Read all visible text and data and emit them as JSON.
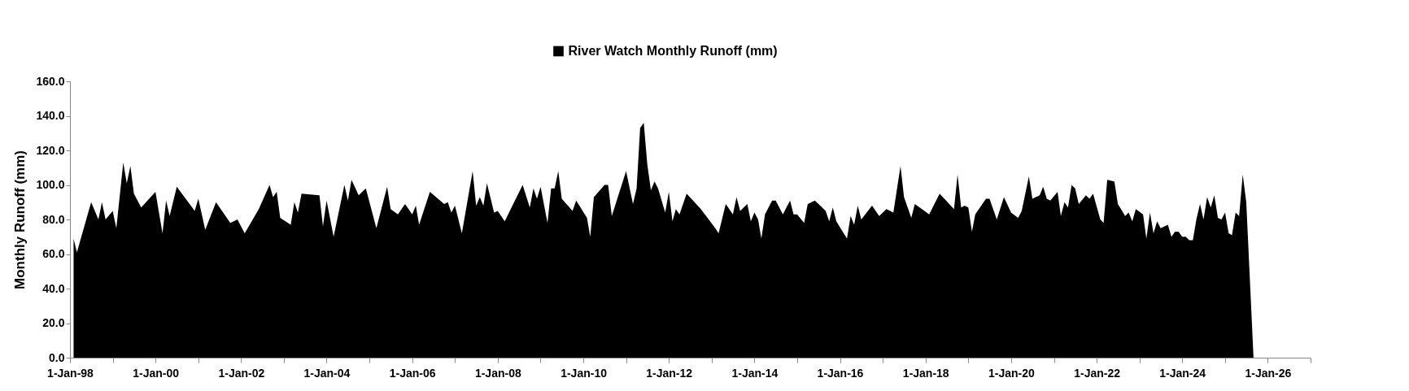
{
  "chart_data": {
    "type": "area",
    "ylabel": "Monthly Runoff (mm)",
    "legend": "top",
    "grid": false,
    "xlim": [
      "1998-01-01",
      "2027-01-01"
    ],
    "xticks": [
      {
        "value": "1998-01-01",
        "label": "1-Jan-98"
      },
      {
        "value": "1999-01-01",
        "label": null
      },
      {
        "value": "2000-01-01",
        "label": "1-Jan-00"
      },
      {
        "value": "2001-01-01",
        "label": null
      },
      {
        "value": "2002-01-01",
        "label": "1-Jan-02"
      },
      {
        "value": "2003-01-01",
        "label": null
      },
      {
        "value": "2004-01-01",
        "label": "1-Jan-04"
      },
      {
        "value": "2005-01-01",
        "label": null
      },
      {
        "value": "2006-01-01",
        "label": "1-Jan-06"
      },
      {
        "value": "2007-01-01",
        "label": null
      },
      {
        "value": "2008-01-01",
        "label": "1-Jan-08"
      },
      {
        "value": "2009-01-01",
        "label": null
      },
      {
        "value": "2010-01-01",
        "label": "1-Jan-10"
      },
      {
        "value": "2011-01-01",
        "label": null
      },
      {
        "value": "2012-01-01",
        "label": "1-Jan-12"
      },
      {
        "value": "2013-01-01",
        "label": null
      },
      {
        "value": "2014-01-01",
        "label": "1-Jan-14"
      },
      {
        "value": "2015-01-01",
        "label": null
      },
      {
        "value": "2016-01-01",
        "label": "1-Jan-16"
      },
      {
        "value": "2017-01-01",
        "label": null
      },
      {
        "value": "2018-01-01",
        "label": "1-Jan-18"
      },
      {
        "value": "2019-01-01",
        "label": null
      },
      {
        "value": "2020-01-01",
        "label": "1-Jan-20"
      },
      {
        "value": "2021-01-01",
        "label": null
      },
      {
        "value": "2022-01-01",
        "label": "1-Jan-22"
      },
      {
        "value": "2023-01-01",
        "label": null
      },
      {
        "value": "2024-01-01",
        "label": "1-Jan-24"
      },
      {
        "value": "2025-01-01",
        "label": null
      },
      {
        "value": "2026-01-01",
        "label": "1-Jan-26"
      },
      {
        "value": "2027-01-01",
        "label": null
      }
    ],
    "ylim": [
      0,
      160
    ],
    "yticks": [
      {
        "value": 0,
        "label": "0.0"
      },
      {
        "value": 20,
        "label": "20.0"
      },
      {
        "value": 40,
        "label": "40.0"
      },
      {
        "value": 60,
        "label": "60.0"
      },
      {
        "value": 80,
        "label": "80.0"
      },
      {
        "value": 100,
        "label": "100.0"
      },
      {
        "value": 120,
        "label": "120.0"
      },
      {
        "value": 140,
        "label": "140.0"
      },
      {
        "value": 160,
        "label": "160.0"
      }
    ],
    "x": [
      "1998-02",
      "1998-03",
      "1998-07",
      "1998-09",
      "1998-10",
      "1998-11",
      "1999-01",
      "1999-02",
      "1999-04",
      "1999-05",
      "1999-06",
      "1999-07",
      "1999-09",
      "2000-01",
      "2000-03",
      "2000-04",
      "2000-05",
      "2000-07",
      "2000-12",
      "2001-01",
      "2001-03",
      "2001-06",
      "2001-10",
      "2001-12",
      "2002-02",
      "2002-06",
      "2002-09",
      "2002-10",
      "2002-11",
      "2002-12",
      "2003-03",
      "2003-04",
      "2003-05",
      "2003-06",
      "2003-11",
      "2003-12",
      "2004-01",
      "2004-03",
      "2004-06",
      "2004-07",
      "2004-08",
      "2004-10",
      "2004-12",
      "2005-03",
      "2005-06",
      "2005-07",
      "2005-09",
      "2005-11",
      "2006-01",
      "2006-02",
      "2006-03",
      "2006-06",
      "2006-10",
      "2006-11",
      "2006-12",
      "2007-01",
      "2007-03",
      "2007-06",
      "2007-07",
      "2007-08",
      "2007-09",
      "2007-10",
      "2007-12",
      "2008-01",
      "2008-03",
      "2008-08",
      "2008-10",
      "2008-11",
      "2008-12",
      "2009-01",
      "2009-03",
      "2009-04",
      "2009-05",
      "2009-06",
      "2009-07",
      "2009-10",
      "2009-11",
      "2010-02",
      "2010-03",
      "2010-04",
      "2010-07",
      "2010-08",
      "2010-09",
      "2011-01",
      "2011-03",
      "2011-04",
      "2011-05",
      "2011-06",
      "2011-07",
      "2011-08",
      "2011-09",
      "2011-10",
      "2011-12",
      "2012-01",
      "2012-02",
      "2012-03",
      "2012-04",
      "2012-06",
      "2012-10",
      "2013-02",
      "2013-03",
      "2013-05",
      "2013-07",
      "2013-08",
      "2013-09",
      "2013-11",
      "2013-12",
      "2014-01",
      "2014-02",
      "2014-03",
      "2014-04",
      "2014-06",
      "2014-07",
      "2014-09",
      "2014-11",
      "2014-12",
      "2015-01",
      "2015-03",
      "2015-04",
      "2015-06",
      "2015-09",
      "2015-10",
      "2015-11",
      "2015-12",
      "2016-03",
      "2016-04",
      "2016-05",
      "2016-06",
      "2016-07",
      "2016-10",
      "2016-12",
      "2017-02",
      "2017-04",
      "2017-06",
      "2017-07",
      "2017-09",
      "2017-10",
      "2018-02",
      "2018-05",
      "2018-09",
      "2018-10",
      "2018-11",
      "2018-12",
      "2019-01",
      "2019-02",
      "2019-03",
      "2019-06",
      "2019-07",
      "2019-09",
      "2019-11",
      "2020-01",
      "2020-03",
      "2020-04",
      "2020-06",
      "2020-07",
      "2020-09",
      "2020-10",
      "2020-11",
      "2020-12",
      "2021-02",
      "2021-03",
      "2021-04",
      "2021-05",
      "2021-06",
      "2021-07",
      "2021-08",
      "2021-10",
      "2021-11",
      "2021-12",
      "2022-02",
      "2022-03",
      "2022-04",
      "2022-06",
      "2022-07",
      "2022-09",
      "2022-10",
      "2022-11",
      "2022-12",
      "2023-02",
      "2023-03",
      "2023-04",
      "2023-05",
      "2023-06",
      "2023-07",
      "2023-09",
      "2023-10",
      "2023-11",
      "2023-12",
      "2024-01",
      "2024-02",
      "2024-03",
      "2024-04",
      "2024-05",
      "2024-06",
      "2024-07",
      "2024-08",
      "2024-09",
      "2024-10",
      "2024-11",
      "2024-12",
      "2025-01",
      "2025-02",
      "2025-03",
      "2025-04",
      "2025-05",
      "2025-06",
      "2025-07",
      "2025-09"
    ],
    "series": [
      {
        "name": "River Watch Monthly Runoff (mm)",
        "color": "#000000",
        "values": [
          69,
          61,
          90,
          80,
          90,
          80,
          85,
          75,
          113,
          101,
          111,
          95,
          87,
          96,
          72,
          91,
          82,
          99,
          85,
          92,
          74,
          90,
          78,
          80,
          72,
          86,
          100,
          93,
          96,
          81,
          77,
          90,
          84,
          95,
          94,
          76,
          91,
          70,
          100,
          91,
          103,
          94,
          98,
          75,
          99,
          86,
          83,
          89,
          83,
          88,
          77,
          96,
          89,
          90,
          84,
          88,
          72,
          108,
          88,
          93,
          88,
          101,
          84,
          85,
          79,
          100,
          87,
          98,
          92,
          99,
          78,
          98,
          98,
          108,
          92,
          85,
          91,
          81,
          70,
          93,
          100,
          100,
          82,
          108,
          89,
          98,
          133,
          136,
          112,
          97,
          102,
          98,
          84,
          96,
          79,
          86,
          83,
          95,
          86,
          75,
          72,
          89,
          83,
          93,
          85,
          89,
          79,
          84,
          80,
          69,
          83,
          91,
          91,
          83,
          91,
          83,
          83,
          78,
          89,
          91,
          85,
          79,
          87,
          79,
          69,
          82,
          77,
          88,
          80,
          88,
          82,
          86,
          84,
          111,
          93,
          81,
          89,
          83,
          95,
          86,
          106,
          87,
          88,
          87,
          73,
          83,
          92,
          92,
          80,
          93,
          84,
          81,
          85,
          105,
          92,
          94,
          99,
          92,
          91,
          96,
          82,
          90,
          87,
          100,
          98,
          89,
          94,
          92,
          95,
          80,
          78,
          103,
          102,
          89,
          82,
          84,
          79,
          86,
          83,
          69,
          84,
          72,
          79,
          75,
          77,
          70,
          73,
          73,
          70,
          70,
          68,
          68,
          80,
          89,
          80,
          93,
          87,
          94,
          81,
          80,
          84,
          72,
          71,
          84,
          82,
          106,
          90,
          0
        ]
      }
    ]
  }
}
